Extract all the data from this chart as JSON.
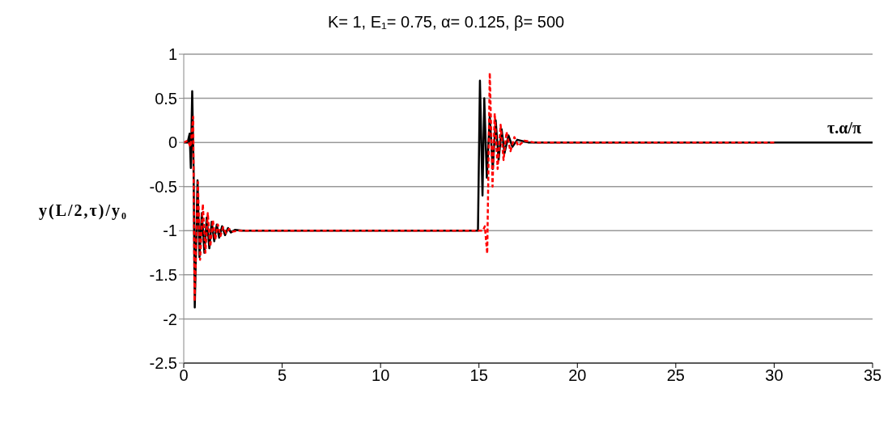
{
  "chart_data": {
    "type": "line",
    "title": "K= 1, E₁= 0.75, α= 0.125, β= 500",
    "xlabel": "τ.α/π",
    "ylabel": "y(L/2,τ)/y₀",
    "xlim": [
      0,
      35
    ],
    "xticks": [
      0,
      5,
      10,
      15,
      20,
      25,
      30,
      35
    ],
    "ylim": [
      -2.5,
      1
    ],
    "yticks": [
      -2.5,
      -2,
      -1.5,
      -1,
      -0.5,
      0,
      0.5,
      1
    ],
    "grid": "y",
    "marker": "none",
    "series": [
      {
        "color": "#000000",
        "line_style": "solid",
        "x": [
          0,
          0.2,
          0.3,
          0.36,
          0.43,
          0.5,
          0.56,
          0.7,
          0.8,
          0.92,
          1.05,
          1.17,
          1.3,
          1.42,
          1.55,
          1.68,
          1.8,
          1.95,
          2.1,
          2.25,
          2.4,
          2.6,
          3,
          14.9,
          14.95,
          15.05,
          15.18,
          15.27,
          15.4,
          15.55,
          15.7,
          15.85,
          16,
          16.15,
          16.3,
          16.5,
          16.7,
          16.95,
          17.5,
          35
        ],
        "values": [
          0,
          0,
          0.1,
          -0.29,
          0.58,
          -0.3,
          -1.87,
          -0.43,
          -1.3,
          -0.8,
          -1.25,
          -0.85,
          -1.2,
          -0.9,
          -1.12,
          -0.93,
          -1.08,
          -0.95,
          -1.05,
          -0.97,
          -1.02,
          -0.99,
          -1,
          -1,
          -1,
          0.7,
          -0.6,
          0.5,
          -0.4,
          0.3,
          -0.3,
          0.25,
          -0.2,
          0.15,
          -0.12,
          0.08,
          -0.05,
          0.03,
          0,
          0
        ]
      },
      {
        "color": "#ff0000",
        "line_style": "dashed",
        "x": [
          0,
          0.2,
          0.35,
          0.48,
          0.55,
          0.72,
          0.83,
          0.97,
          1.1,
          1.22,
          1.35,
          1.48,
          1.6,
          1.73,
          1.87,
          2,
          2.15,
          2.3,
          2.5,
          2.8,
          3.2,
          15.2,
          15.3,
          15.42,
          15.55,
          15.69,
          15.8,
          15.95,
          16.1,
          16.25,
          16.4,
          16.6,
          16.8,
          17,
          17.3,
          17.8,
          30
        ],
        "values": [
          0,
          0.02,
          -0.05,
          0.29,
          -1.8,
          -0.45,
          -1.33,
          -0.7,
          -1.25,
          -0.8,
          -1.18,
          -0.88,
          -1.1,
          -0.93,
          -1.06,
          -0.96,
          -1.03,
          -0.98,
          -1.01,
          -1,
          -1,
          -1,
          -0.95,
          -1.26,
          0.79,
          -0.5,
          0.33,
          -0.3,
          0.2,
          -0.2,
          0.12,
          -0.1,
          0.06,
          -0.04,
          0.02,
          0,
          0
        ]
      }
    ]
  }
}
